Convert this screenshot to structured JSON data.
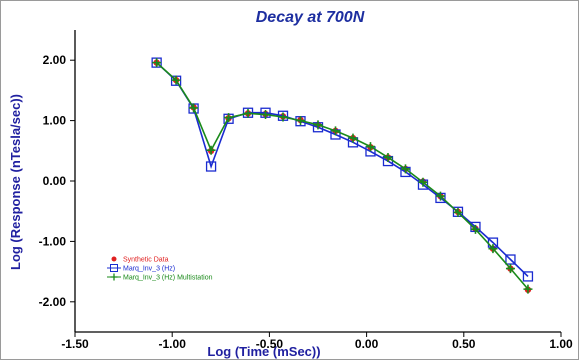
{
  "chart_data": {
    "type": "line",
    "title": "Decay at 700N",
    "xlabel": "Log (Time (mSec))",
    "ylabel": "Log (Response (nTesla/sec))",
    "xlim": [
      -1.5,
      1.0
    ],
    "ylim": [
      -2.5,
      2.5
    ],
    "xticks": [
      -1.5,
      -1.0,
      -0.5,
      0.0,
      0.5,
      1.0
    ],
    "yticks": [
      -2.0,
      -1.0,
      0.0,
      1.0,
      2.0
    ],
    "xtick_labels": [
      "-1.50",
      "-1.00",
      "-0.50",
      "0.00",
      "0.50",
      "1.00"
    ],
    "ytick_labels": [
      "-2.00",
      "-1.00",
      "0.00",
      "1.00",
      "2.00"
    ],
    "grid": false,
    "legend_position": "bottom-left",
    "series": [
      {
        "name": "Synthetic Data",
        "color": "#e02020",
        "marker": "filled-circle",
        "x": [
          -1.08,
          -0.98,
          -0.89,
          -0.8,
          -0.71,
          -0.61,
          -0.52,
          -0.43,
          -0.34,
          -0.25,
          -0.16,
          -0.07,
          0.02,
          0.11,
          0.2,
          0.29,
          0.38,
          0.47,
          0.56,
          0.65,
          0.74,
          0.83
        ],
        "y": [
          1.96,
          1.67,
          1.22,
          0.5,
          1.04,
          1.12,
          1.11,
          1.07,
          1.01,
          0.93,
          0.83,
          0.71,
          0.56,
          0.39,
          0.2,
          -0.01,
          -0.25,
          -0.51,
          -0.79,
          -1.12,
          -1.45,
          -1.8
        ]
      },
      {
        "name": "Marq_Inv_3 (Hz)",
        "color": "#1a2bd0",
        "marker": "open-square",
        "x": [
          -1.08,
          -0.98,
          -0.89,
          -0.8,
          -0.71,
          -0.61,
          -0.52,
          -0.43,
          -0.34,
          -0.25,
          -0.16,
          -0.07,
          0.02,
          0.11,
          0.2,
          0.29,
          0.38,
          0.47,
          0.56,
          0.65,
          0.74,
          0.83
        ],
        "y": [
          1.96,
          1.66,
          1.2,
          0.24,
          1.03,
          1.13,
          1.13,
          1.08,
          0.99,
          0.89,
          0.77,
          0.64,
          0.49,
          0.33,
          0.15,
          -0.06,
          -0.28,
          -0.51,
          -0.76,
          -1.02,
          -1.3,
          -1.58
        ]
      },
      {
        "name": "Marq_Inv_3 (Hz) Multistation",
        "color": "#1a8a1a",
        "marker": "plus",
        "x": [
          -1.08,
          -0.98,
          -0.89,
          -0.8,
          -0.71,
          -0.61,
          -0.52,
          -0.43,
          -0.34,
          -0.25,
          -0.16,
          -0.07,
          0.02,
          0.11,
          0.2,
          0.29,
          0.38,
          0.47,
          0.56,
          0.65,
          0.74,
          0.83
        ],
        "y": [
          1.96,
          1.67,
          1.21,
          0.51,
          1.05,
          1.12,
          1.1,
          1.06,
          1.0,
          0.93,
          0.83,
          0.71,
          0.57,
          0.39,
          0.2,
          -0.02,
          -0.25,
          -0.52,
          -0.8,
          -1.12,
          -1.45,
          -1.79
        ]
      }
    ]
  }
}
